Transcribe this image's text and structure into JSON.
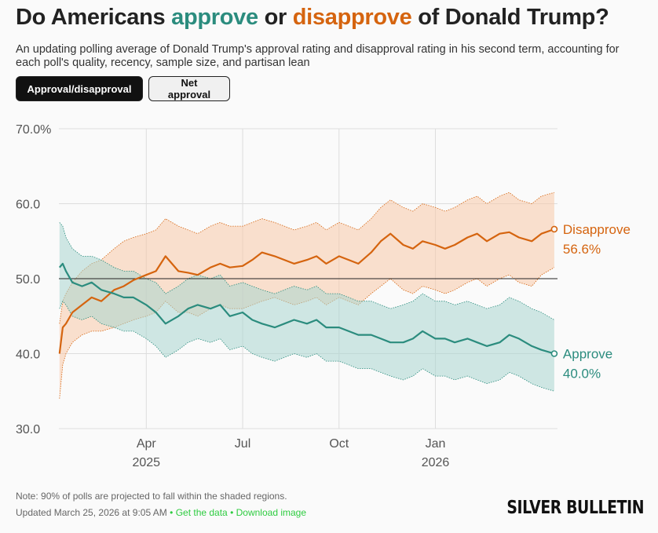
{
  "title": {
    "prefix": "Do Americans ",
    "approve_word": "approve",
    "middle": " or ",
    "disapprove_word": "disapprove",
    "suffix": " of Donald Trump?"
  },
  "subtitle": "An updating polling average of Donald Trump's approval rating and disapproval rating in his second term, accounting for each poll's quality, recency, sample size, and partisan lean",
  "toggles": {
    "approval_disapproval": "Approval/disapproval",
    "net_approval": "Net approval",
    "active": "approval_disapproval"
  },
  "colors": {
    "approve": "#2b8c7e",
    "approve_band": "#a9d6cf",
    "disapprove": "#d5640f",
    "disapprove_band": "#f7c9a8",
    "link": "#2ecc40"
  },
  "chart_data": {
    "type": "line",
    "title": "Do Americans approve or disapprove of Donald Trump?",
    "ylim": [
      30,
      70
    ],
    "y_ticks": [
      {
        "value": 70,
        "label": "70.0%"
      },
      {
        "value": 60,
        "label": "60.0"
      },
      {
        "value": 50,
        "label": "50.0"
      },
      {
        "value": 40,
        "label": "40.0"
      },
      {
        "value": 30,
        "label": "30.0"
      }
    ],
    "x_ticks": [
      {
        "month_index": 2,
        "label": "Apr",
        "year": "2025"
      },
      {
        "month_index": 5,
        "label": "Jul",
        "year": ""
      },
      {
        "month_index": 8,
        "label": "Oct",
        "year": ""
      },
      {
        "month_index": 11,
        "label": "Jan",
        "year": "2026"
      }
    ],
    "x_range_months": [
      -0.72,
      14.8
    ],
    "reference_line": 50,
    "grid": true,
    "band_note": "90% of polls projected within shaded regions",
    "series": [
      {
        "name": "Disapprove",
        "final_value_label": "56.6%",
        "x": [
          -0.7,
          -0.6,
          -0.5,
          -0.3,
          0.0,
          0.3,
          0.6,
          1.0,
          1.3,
          1.6,
          2.0,
          2.3,
          2.6,
          3.0,
          3.3,
          3.6,
          4.0,
          4.3,
          4.6,
          5.0,
          5.3,
          5.6,
          6.0,
          6.3,
          6.6,
          7.0,
          7.3,
          7.6,
          8.0,
          8.3,
          8.6,
          9.0,
          9.3,
          9.6,
          10.0,
          10.3,
          10.6,
          11.0,
          11.3,
          11.6,
          12.0,
          12.3,
          12.6,
          13.0,
          13.3,
          13.6,
          14.0,
          14.3,
          14.7
        ],
        "values": [
          40.0,
          43.5,
          44.0,
          45.5,
          46.5,
          47.5,
          47.0,
          48.5,
          49.0,
          49.8,
          50.5,
          51.0,
          53.0,
          51.0,
          50.8,
          50.5,
          51.5,
          52.0,
          51.5,
          51.7,
          52.5,
          53.5,
          53.0,
          52.5,
          52.0,
          52.5,
          53.0,
          52.0,
          53.0,
          52.5,
          52.0,
          53.5,
          55.0,
          56.0,
          54.5,
          54.0,
          55.0,
          54.5,
          54.0,
          54.5,
          55.5,
          56.0,
          55.0,
          56.0,
          56.2,
          55.5,
          55.0,
          56.0,
          56.6
        ],
        "upper": [
          44.0,
          47.0,
          48.0,
          49.5,
          51.0,
          52.0,
          52.5,
          54.0,
          55.0,
          55.5,
          56.0,
          56.5,
          58.0,
          57.0,
          56.5,
          56.0,
          57.0,
          57.5,
          57.0,
          57.0,
          57.5,
          58.0,
          57.5,
          57.0,
          56.5,
          57.0,
          57.5,
          56.5,
          57.5,
          57.0,
          56.5,
          58.0,
          59.5,
          60.5,
          59.5,
          59.0,
          60.0,
          59.5,
          59.0,
          59.5,
          60.5,
          61.0,
          60.0,
          61.0,
          61.5,
          60.5,
          60.0,
          61.0,
          61.5
        ],
        "lower": [
          34.0,
          38.5,
          40.0,
          41.5,
          42.5,
          43.0,
          43.0,
          43.5,
          44.0,
          44.5,
          45.0,
          45.5,
          47.0,
          45.5,
          45.5,
          45.0,
          46.0,
          46.5,
          46.0,
          46.0,
          46.5,
          47.0,
          47.5,
          47.0,
          46.5,
          47.0,
          47.5,
          46.5,
          47.5,
          47.0,
          46.5,
          48.0,
          49.0,
          50.0,
          48.5,
          48.0,
          49.0,
          48.5,
          48.0,
          48.5,
          49.5,
          50.0,
          49.0,
          50.0,
          50.5,
          49.5,
          49.0,
          50.5,
          51.5
        ]
      },
      {
        "name": "Approve",
        "final_value_label": "40.0%",
        "x": [
          -0.7,
          -0.6,
          -0.5,
          -0.3,
          0.0,
          0.3,
          0.6,
          1.0,
          1.3,
          1.6,
          2.0,
          2.3,
          2.6,
          3.0,
          3.3,
          3.6,
          4.0,
          4.3,
          4.6,
          5.0,
          5.3,
          5.6,
          6.0,
          6.3,
          6.6,
          7.0,
          7.3,
          7.6,
          8.0,
          8.3,
          8.6,
          9.0,
          9.3,
          9.6,
          10.0,
          10.3,
          10.6,
          11.0,
          11.3,
          11.6,
          12.0,
          12.3,
          12.6,
          13.0,
          13.3,
          13.6,
          14.0,
          14.3,
          14.7
        ],
        "values": [
          51.5,
          52.0,
          51.0,
          49.5,
          49.0,
          49.5,
          48.5,
          48.0,
          47.5,
          47.5,
          46.5,
          45.5,
          44.0,
          45.0,
          46.0,
          46.5,
          46.0,
          46.5,
          45.0,
          45.5,
          44.5,
          44.0,
          43.5,
          44.0,
          44.5,
          44.0,
          44.5,
          43.5,
          43.5,
          43.0,
          42.5,
          42.5,
          42.0,
          41.5,
          41.5,
          42.0,
          43.0,
          42.0,
          42.0,
          41.5,
          42.0,
          41.5,
          41.0,
          41.5,
          42.5,
          42.0,
          41.0,
          40.5,
          40.0
        ],
        "upper": [
          57.5,
          57.0,
          55.5,
          54.0,
          53.0,
          53.0,
          52.5,
          51.5,
          51.0,
          51.0,
          50.0,
          49.5,
          48.0,
          49.0,
          50.0,
          50.5,
          50.0,
          50.5,
          49.0,
          49.5,
          49.0,
          48.5,
          48.0,
          48.5,
          49.0,
          48.5,
          49.0,
          48.0,
          48.0,
          47.5,
          47.0,
          47.0,
          46.5,
          46.0,
          46.5,
          47.0,
          48.0,
          47.0,
          47.0,
          46.5,
          47.0,
          46.5,
          46.0,
          46.5,
          47.5,
          47.0,
          46.0,
          45.5,
          44.5
        ],
        "lower": [
          46.0,
          47.0,
          46.5,
          45.0,
          44.5,
          45.0,
          44.0,
          43.5,
          43.0,
          43.0,
          42.0,
          41.0,
          39.5,
          40.5,
          41.5,
          42.0,
          41.5,
          42.0,
          40.5,
          41.0,
          40.0,
          39.5,
          39.0,
          39.5,
          40.0,
          39.5,
          40.0,
          39.0,
          39.0,
          38.5,
          38.0,
          38.0,
          37.5,
          37.0,
          36.5,
          37.0,
          38.0,
          37.0,
          37.0,
          36.5,
          37.0,
          36.5,
          36.0,
          36.5,
          37.5,
          37.0,
          36.0,
          35.5,
          35.0
        ]
      }
    ]
  },
  "note": "Note: 90% of polls are projected to fall within the shaded regions.",
  "footer": {
    "updated": "Updated March 25, 2026 at 9:05 AM",
    "separator": "•",
    "get_data": "Get the data",
    "download": "Download image"
  },
  "brand": "SILVER BULLETIN"
}
